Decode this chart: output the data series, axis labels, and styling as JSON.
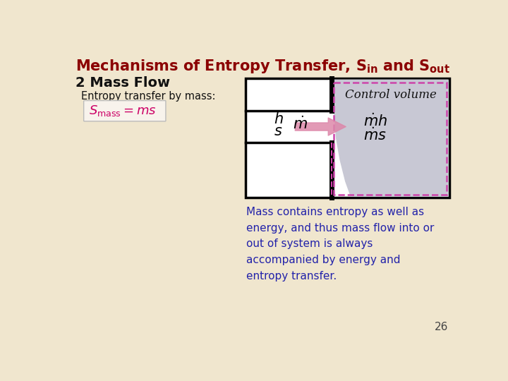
{
  "bg_color": "#f0e6ce",
  "title_color": "#8b0000",
  "title_fontsize": 15,
  "heading_color": "#111111",
  "heading_fontsize": 14,
  "sub_color": "#111111",
  "sub_fontsize": 10.5,
  "formula_color": "#cc0066",
  "formula_fontsize": 13,
  "body_color": "#2222aa",
  "body_fontsize": 11,
  "page_num": "26",
  "dashed_border_color": "#cc44aa",
  "arrow_color_start": "#dd99bb",
  "arrow_color_end": "#cc2266",
  "blob_color": "#c8c8d4",
  "cv_text_color": "#111111",
  "cv_fontsize": 12,
  "body_text": "Mass contains entropy as well as\nenergy, and thus mass flow into or\nout of system is always\naccompanied by energy and\nentropy transfer."
}
